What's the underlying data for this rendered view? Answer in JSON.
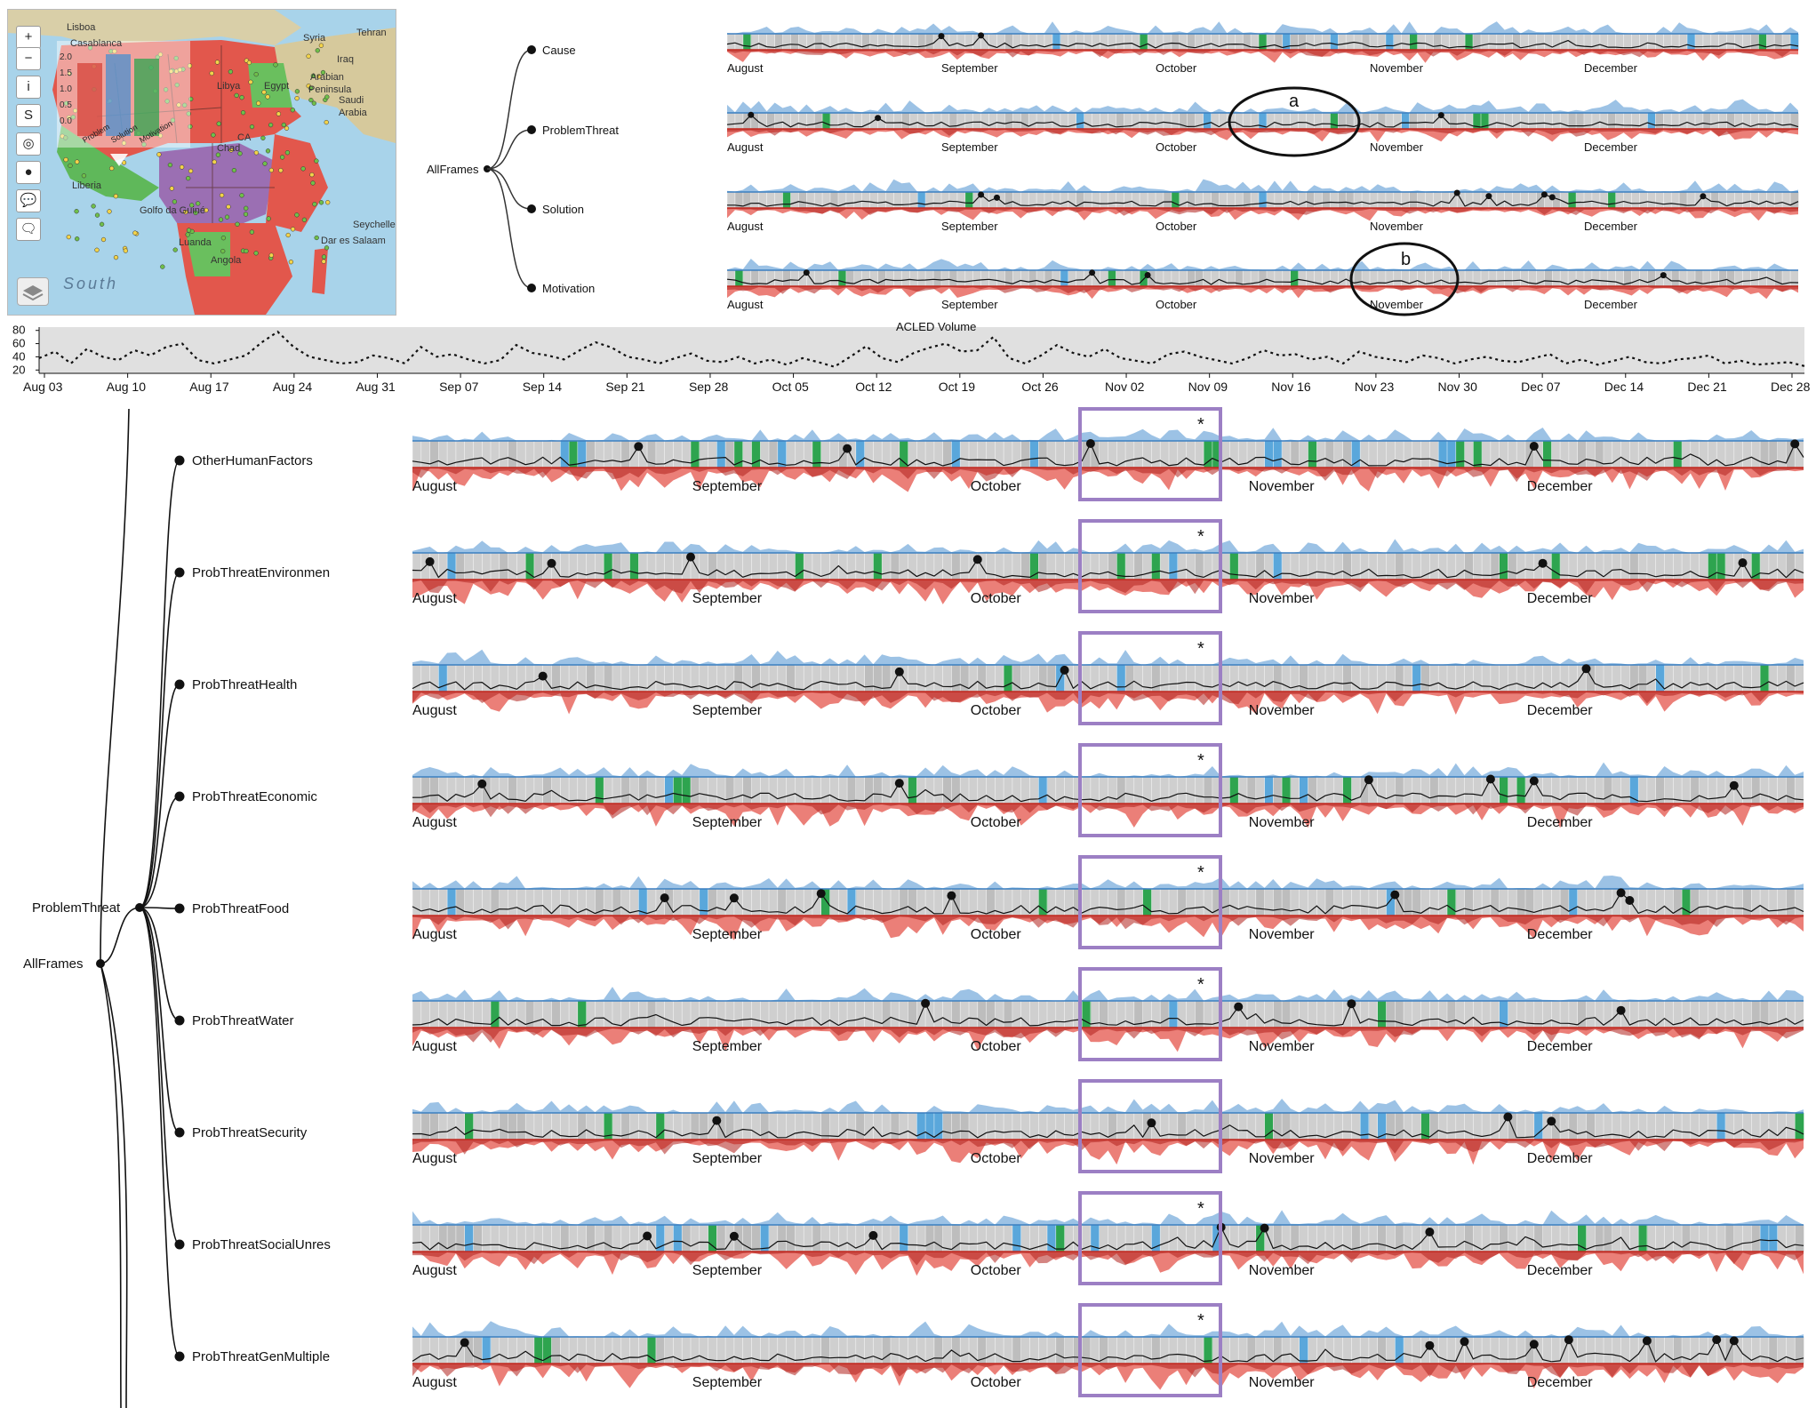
{
  "map": {
    "controls": [
      {
        "name": "zoom-in-button",
        "glyph": "+"
      },
      {
        "name": "zoom-out-button",
        "glyph": "−"
      },
      {
        "name": "info-button",
        "glyph": "i"
      },
      {
        "name": "strike-button",
        "glyph": "S"
      },
      {
        "name": "target-button",
        "glyph": "◎"
      },
      {
        "name": "dot-button",
        "glyph": "●"
      },
      {
        "name": "comment-button",
        "glyph": "💬"
      },
      {
        "name": "comments-button",
        "glyph": "🗨"
      }
    ],
    "mini_axis": [
      "2.0",
      "1.5",
      "1.0",
      "0.5",
      "0.0"
    ],
    "mini_bars": [
      "Problem",
      "Solution",
      "Motivation"
    ],
    "place_labels": [
      {
        "text": "Lisboa",
        "x": 66,
        "y": 14
      },
      {
        "text": "Casablanca",
        "x": 70,
        "y": 32
      },
      {
        "text": "Syria",
        "x": 332,
        "y": 26
      },
      {
        "text": "Tehran",
        "x": 392,
        "y": 20
      },
      {
        "text": "Iraq",
        "x": 370,
        "y": 50
      },
      {
        "text": "Arabian",
        "x": 340,
        "y": 70
      },
      {
        "text": "Peninsula",
        "x": 338,
        "y": 84
      },
      {
        "text": "Saudi",
        "x": 372,
        "y": 96
      },
      {
        "text": "Arabia",
        "x": 372,
        "y": 110
      },
      {
        "text": "Libya",
        "x": 235,
        "y": 80
      },
      {
        "text": "Egypt",
        "x": 288,
        "y": 80
      },
      {
        "text": "Chad",
        "x": 235,
        "y": 150
      },
      {
        "text": "CA",
        "x": 258,
        "y": 138
      },
      {
        "text": "Golfo da Guiné",
        "x": 148,
        "y": 220
      },
      {
        "text": "Liberia",
        "x": 72,
        "y": 192
      },
      {
        "text": "Luanda",
        "x": 192,
        "y": 256
      },
      {
        "text": "Angola",
        "x": 228,
        "y": 276
      },
      {
        "text": "Seychelles",
        "x": 388,
        "y": 236
      },
      {
        "text": "Dar es Salaam",
        "x": 352,
        "y": 254
      }
    ],
    "ocean_label": "South"
  },
  "top_tree": {
    "root": "AllFrames",
    "children": [
      "Cause",
      "ProblemThreat",
      "Solution",
      "Motivation"
    ]
  },
  "top_timelines": {
    "months": [
      "August",
      "September",
      "October",
      "November",
      "December"
    ],
    "annotations": [
      {
        "row": 1,
        "label": "a"
      },
      {
        "row": 3,
        "label": "b"
      }
    ]
  },
  "acled": {
    "title": "ACLED Volume",
    "y_ticks": [
      "80",
      "60",
      "40",
      "20"
    ],
    "x_ticks": [
      "Aug 03",
      "Aug 10",
      "Aug 17",
      "Aug 24",
      "Aug 31",
      "Sep 07",
      "Sep 14",
      "Sep 21",
      "Sep 28",
      "Oct 05",
      "Oct 12",
      "Oct 19",
      "Oct 26",
      "Nov 02",
      "Nov 09",
      "Nov 16",
      "Nov 23",
      "Nov 30",
      "Dec 07",
      "Dec 14",
      "Dec 21",
      "Dec 28"
    ],
    "values": [
      38,
      48,
      30,
      52,
      40,
      35,
      50,
      42,
      55,
      60,
      35,
      30,
      36,
      42,
      62,
      78,
      55,
      40,
      35,
      30,
      32,
      42,
      38,
      30,
      55,
      40,
      44,
      36,
      30,
      35,
      58,
      46,
      42,
      36,
      50,
      62,
      54,
      40,
      36,
      30,
      38,
      45,
      34,
      32,
      40,
      30,
      36,
      28,
      38,
      32,
      25,
      40,
      56,
      38,
      32,
      46,
      54,
      60,
      48,
      50,
      70,
      38,
      30,
      42,
      58,
      46,
      40,
      52,
      38,
      34,
      30,
      44,
      48,
      40,
      35,
      30,
      38,
      50,
      42,
      44,
      36,
      40,
      30,
      48,
      40,
      36,
      32,
      42,
      38,
      30,
      36,
      40,
      34,
      32,
      38,
      44,
      30,
      36,
      28,
      34,
      40,
      32,
      30,
      36,
      38,
      42,
      30,
      34,
      28,
      30,
      32,
      26
    ]
  },
  "main_tree": {
    "root": "AllFrames",
    "parent": "ProblemThreat",
    "children": [
      "OtherHumanFactors",
      "ProbThreatEnvironmen",
      "ProbThreatHealth",
      "ProbThreatEconomic",
      "ProbThreatFood",
      "ProbThreatWater",
      "ProbThreatSecurity",
      "ProbThreatSocialUnres",
      "ProbThreatGenMultiple"
    ]
  },
  "main_timelines": {
    "months": [
      "August",
      "September",
      "October",
      "November",
      "December"
    ],
    "highlight_marker": "*",
    "rows_with_marker": [
      0,
      1,
      2,
      3,
      4,
      5,
      7,
      8
    ]
  },
  "colors": {
    "blue_band": "#4a8fcf",
    "red_band": "#e03a2f",
    "green_event": "#2ea44f",
    "blue_event": "#5aa7db",
    "gray_bar": "#cfcfcf",
    "highlight": "#9c7fc4"
  }
}
